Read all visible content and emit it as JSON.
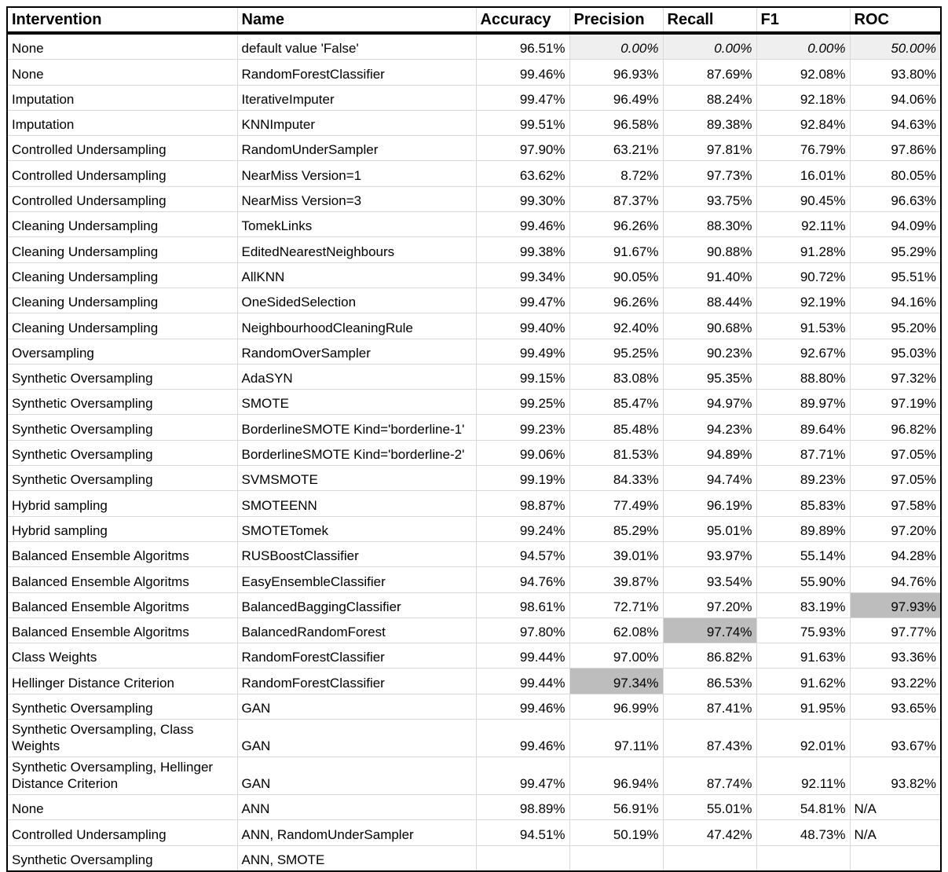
{
  "headers": [
    "Intervention",
    "Name",
    "Accuracy",
    "Precision",
    "Recall",
    "F1",
    "ROC"
  ],
  "highlight_color": "#bdbdbd",
  "rows": [
    {
      "intervention": "None",
      "name": "default value 'False'",
      "accuracy": "96.51%",
      "precision": "0.00%",
      "recall": "0.00%",
      "f1": "0.00%",
      "roc": "50.00%"
    },
    {
      "intervention": "None",
      "name": "RandomForestClassifier",
      "accuracy": "99.46%",
      "precision": "96.93%",
      "recall": "87.69%",
      "f1": "92.08%",
      "roc": "93.80%"
    },
    {
      "intervention": "Imputation",
      "name": "IterativeImputer",
      "accuracy": "99.47%",
      "precision": "96.49%",
      "recall": "88.24%",
      "f1": "92.18%",
      "roc": "94.06%"
    },
    {
      "intervention": "Imputation",
      "name": "KNNImputer",
      "accuracy": "99.51%",
      "precision": "96.58%",
      "recall": "89.38%",
      "f1": "92.84%",
      "roc": "94.63%"
    },
    {
      "intervention": "Controlled Undersampling",
      "name": "RandomUnderSampler",
      "accuracy": "97.90%",
      "precision": "63.21%",
      "recall": "97.81%",
      "f1": "76.79%",
      "roc": "97.86%"
    },
    {
      "intervention": "Controlled Undersampling",
      "name": "NearMiss Version=1",
      "accuracy": "63.62%",
      "precision": "8.72%",
      "recall": "97.73%",
      "f1": "16.01%",
      "roc": "80.05%"
    },
    {
      "intervention": "Controlled Undersampling",
      "name": "NearMiss Version=3",
      "accuracy": "99.30%",
      "precision": "87.37%",
      "recall": "93.75%",
      "f1": "90.45%",
      "roc": "96.63%"
    },
    {
      "intervention": "Cleaning Undersampling",
      "name": "TomekLinks",
      "accuracy": "99.46%",
      "precision": "96.26%",
      "recall": "88.30%",
      "f1": "92.11%",
      "roc": "94.09%"
    },
    {
      "intervention": "Cleaning Undersampling",
      "name": "EditedNearestNeighbours",
      "accuracy": "99.38%",
      "precision": "91.67%",
      "recall": "90.88%",
      "f1": "91.28%",
      "roc": "95.29%"
    },
    {
      "intervention": "Cleaning Undersampling",
      "name": "AllKNN",
      "accuracy": "99.34%",
      "precision": "90.05%",
      "recall": "91.40%",
      "f1": "90.72%",
      "roc": "95.51%"
    },
    {
      "intervention": "Cleaning Undersampling",
      "name": "OneSidedSelection",
      "accuracy": "99.47%",
      "precision": "96.26%",
      "recall": "88.44%",
      "f1": "92.19%",
      "roc": "94.16%"
    },
    {
      "intervention": "Cleaning Undersampling",
      "name": "NeighbourhoodCleaningRule",
      "accuracy": "99.40%",
      "precision": "92.40%",
      "recall": "90.68%",
      "f1": "91.53%",
      "roc": "95.20%"
    },
    {
      "intervention": "Oversampling",
      "name": "RandomOverSampler",
      "accuracy": "99.49%",
      "precision": "95.25%",
      "recall": "90.23%",
      "f1": "92.67%",
      "roc": "95.03%"
    },
    {
      "intervention": "Synthetic Oversampling",
      "name": "AdaSYN",
      "accuracy": "99.15%",
      "precision": "83.08%",
      "recall": "95.35%",
      "f1": "88.80%",
      "roc": "97.32%"
    },
    {
      "intervention": "Synthetic Oversampling",
      "name": "SMOTE",
      "accuracy": "99.25%",
      "precision": "85.47%",
      "recall": "94.97%",
      "f1": "89.97%",
      "roc": "97.19%"
    },
    {
      "intervention": "Synthetic Oversampling",
      "name": "BorderlineSMOTE Kind='borderline-1'",
      "accuracy": "99.23%",
      "precision": "85.48%",
      "recall": "94.23%",
      "f1": "89.64%",
      "roc": "96.82%"
    },
    {
      "intervention": "Synthetic Oversampling",
      "name": "BorderlineSMOTE Kind='borderline-2'",
      "accuracy": "99.06%",
      "precision": "81.53%",
      "recall": "94.89%",
      "f1": "87.71%",
      "roc": "97.05%"
    },
    {
      "intervention": "Synthetic Oversampling",
      "name": "SVMSMOTE",
      "accuracy": "99.19%",
      "precision": "84.33%",
      "recall": "94.74%",
      "f1": "89.23%",
      "roc": "97.05%"
    },
    {
      "intervention": "Hybrid sampling",
      "name": "SMOTEENN",
      "accuracy": "98.87%",
      "precision": "77.49%",
      "recall": "96.19%",
      "f1": "85.83%",
      "roc": "97.58%"
    },
    {
      "intervention": "Hybrid sampling",
      "name": "SMOTETomek",
      "accuracy": "99.24%",
      "precision": "85.29%",
      "recall": "95.01%",
      "f1": "89.89%",
      "roc": "97.20%"
    },
    {
      "intervention": "Balanced Ensemble Algoritms",
      "name": "RUSBoostClassifier",
      "accuracy": "94.57%",
      "precision": "39.01%",
      "recall": "93.97%",
      "f1": "55.14%",
      "roc": "94.28%"
    },
    {
      "intervention": "Balanced Ensemble Algoritms",
      "name": "EasyEnsembleClassifier",
      "accuracy": "94.76%",
      "precision": "39.87%",
      "recall": "93.54%",
      "f1": "55.90%",
      "roc": "94.76%"
    },
    {
      "intervention": "Balanced Ensemble Algoritms",
      "name": "BalancedBaggingClassifier",
      "accuracy": "98.61%",
      "precision": "72.71%",
      "recall": "97.20%",
      "f1": "83.19%",
      "roc": "97.93%"
    },
    {
      "intervention": "Balanced Ensemble Algoritms",
      "name": "BalancedRandomForest",
      "accuracy": "97.80%",
      "precision": "62.08%",
      "recall": "97.74%",
      "f1": "75.93%",
      "roc": "97.77%"
    },
    {
      "intervention": "Class Weights",
      "name": "RandomForestClassifier",
      "accuracy": "99.44%",
      "precision": "97.00%",
      "recall": "86.82%",
      "f1": "91.63%",
      "roc": "93.36%"
    },
    {
      "intervention": "Hellinger Distance Criterion",
      "name": "RandomForestClassifier",
      "accuracy": "99.44%",
      "precision": "97.34%",
      "recall": "86.53%",
      "f1": "91.62%",
      "roc": "93.22%"
    },
    {
      "intervention": "Synthetic Oversampling",
      "name": "GAN",
      "accuracy": "99.46%",
      "precision": "96.99%",
      "recall": "87.41%",
      "f1": "91.95%",
      "roc": "93.65%"
    },
    {
      "intervention": "Synthetic Oversampling, Class Weights",
      "name": "GAN",
      "accuracy": "99.46%",
      "precision": "97.11%",
      "recall": "87.43%",
      "f1": "92.01%",
      "roc": "93.67%"
    },
    {
      "intervention": "Synthetic Oversampling, Hellinger Distance Criterion",
      "name": "GAN",
      "accuracy": "99.47%",
      "precision": "96.94%",
      "recall": "87.74%",
      "f1": "92.11%",
      "roc": "93.82%"
    },
    {
      "intervention": "None",
      "name": "ANN",
      "accuracy": "98.89%",
      "precision": "56.91%",
      "recall": "55.01%",
      "f1": "54.81%",
      "roc": "N/A"
    },
    {
      "intervention": "Controlled Undersampling",
      "name": "ANN, RandomUnderSampler",
      "accuracy": "94.51%",
      "precision": "50.19%",
      "recall": "47.42%",
      "f1": "48.73%",
      "roc": "N/A"
    },
    {
      "intervention": "Synthetic Oversampling",
      "name": "ANN, SMOTE",
      "accuracy": "",
      "precision": "",
      "recall": "",
      "f1": "",
      "roc": ""
    }
  ]
}
